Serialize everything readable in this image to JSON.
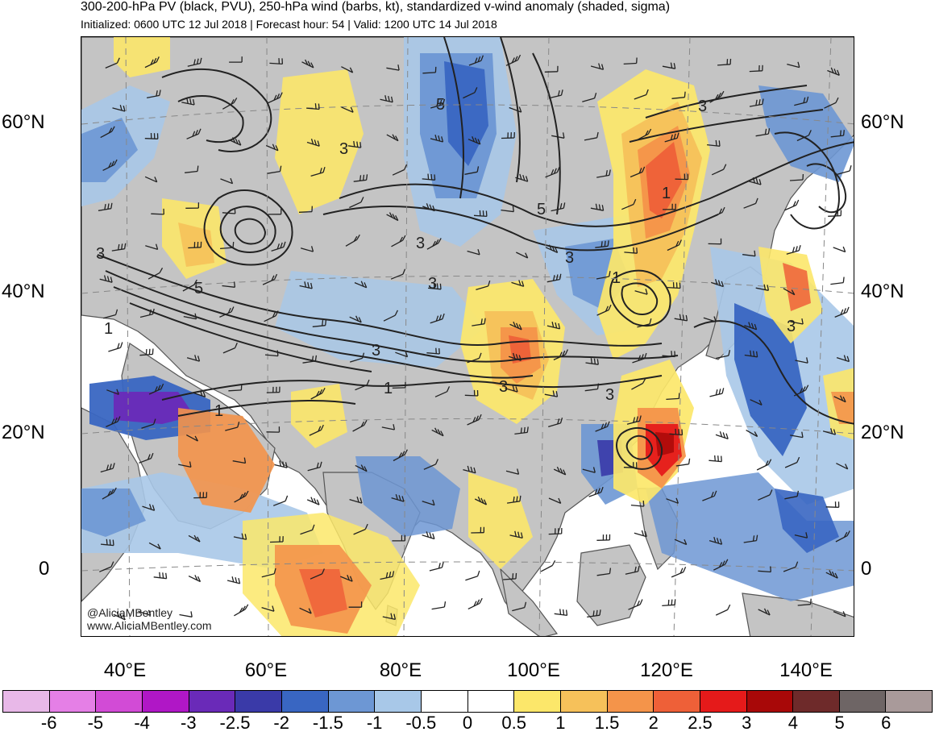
{
  "header": {
    "title": "300-200-hPa PV (black, PVU), 250-hPa wind (barbs, kt), standardized v-wind anomaly (shaded, sigma)",
    "subtitle": "Initialized: 0600 UTC 12 Jul 2018 | Forecast hour: 54 | Valid: 1200 UTC 14 Jul 2018"
  },
  "map": {
    "region": "Asia",
    "lat_labels": [
      "60°N",
      "40°N",
      "20°N",
      "0"
    ],
    "lon_labels": [
      "40°E",
      "60°E",
      "80°E",
      "100°E",
      "120°E",
      "140°E"
    ],
    "pv_contour_labels": [
      "3",
      "5",
      "3",
      "1",
      "3",
      "5",
      "3",
      "3",
      "1",
      "3",
      "1",
      "3",
      "5",
      "3",
      "1",
      "3",
      "1",
      "3"
    ],
    "colors": {
      "land": "#c4c4c4",
      "coast": "#555555",
      "contour": "#222222"
    }
  },
  "credit": {
    "handle": "@AliciaMBentley",
    "website": "www.AliciaMBentley.com"
  },
  "colorbar": {
    "labels": [
      "-6",
      "-5",
      "-4",
      "-3",
      "-2.5",
      "-2",
      "-1.5",
      "-1",
      "-0.5",
      "0",
      "0.5",
      "1",
      "1.5",
      "2",
      "2.5",
      "3",
      "4",
      "5",
      "6"
    ],
    "colors": [
      "#e8b8e8",
      "#e57fe6",
      "#d24bd6",
      "#b017c6",
      "#6a2ab8",
      "#3a3aa8",
      "#3966c2",
      "#6d97d4",
      "#a8c8e8",
      "#ffffff",
      "#ffffff",
      "#fce76a",
      "#f6c15a",
      "#f4944a",
      "#ee6038",
      "#e51a1a",
      "#a80808",
      "#6e2a2a",
      "#6e6565",
      "#a99a9a"
    ]
  }
}
